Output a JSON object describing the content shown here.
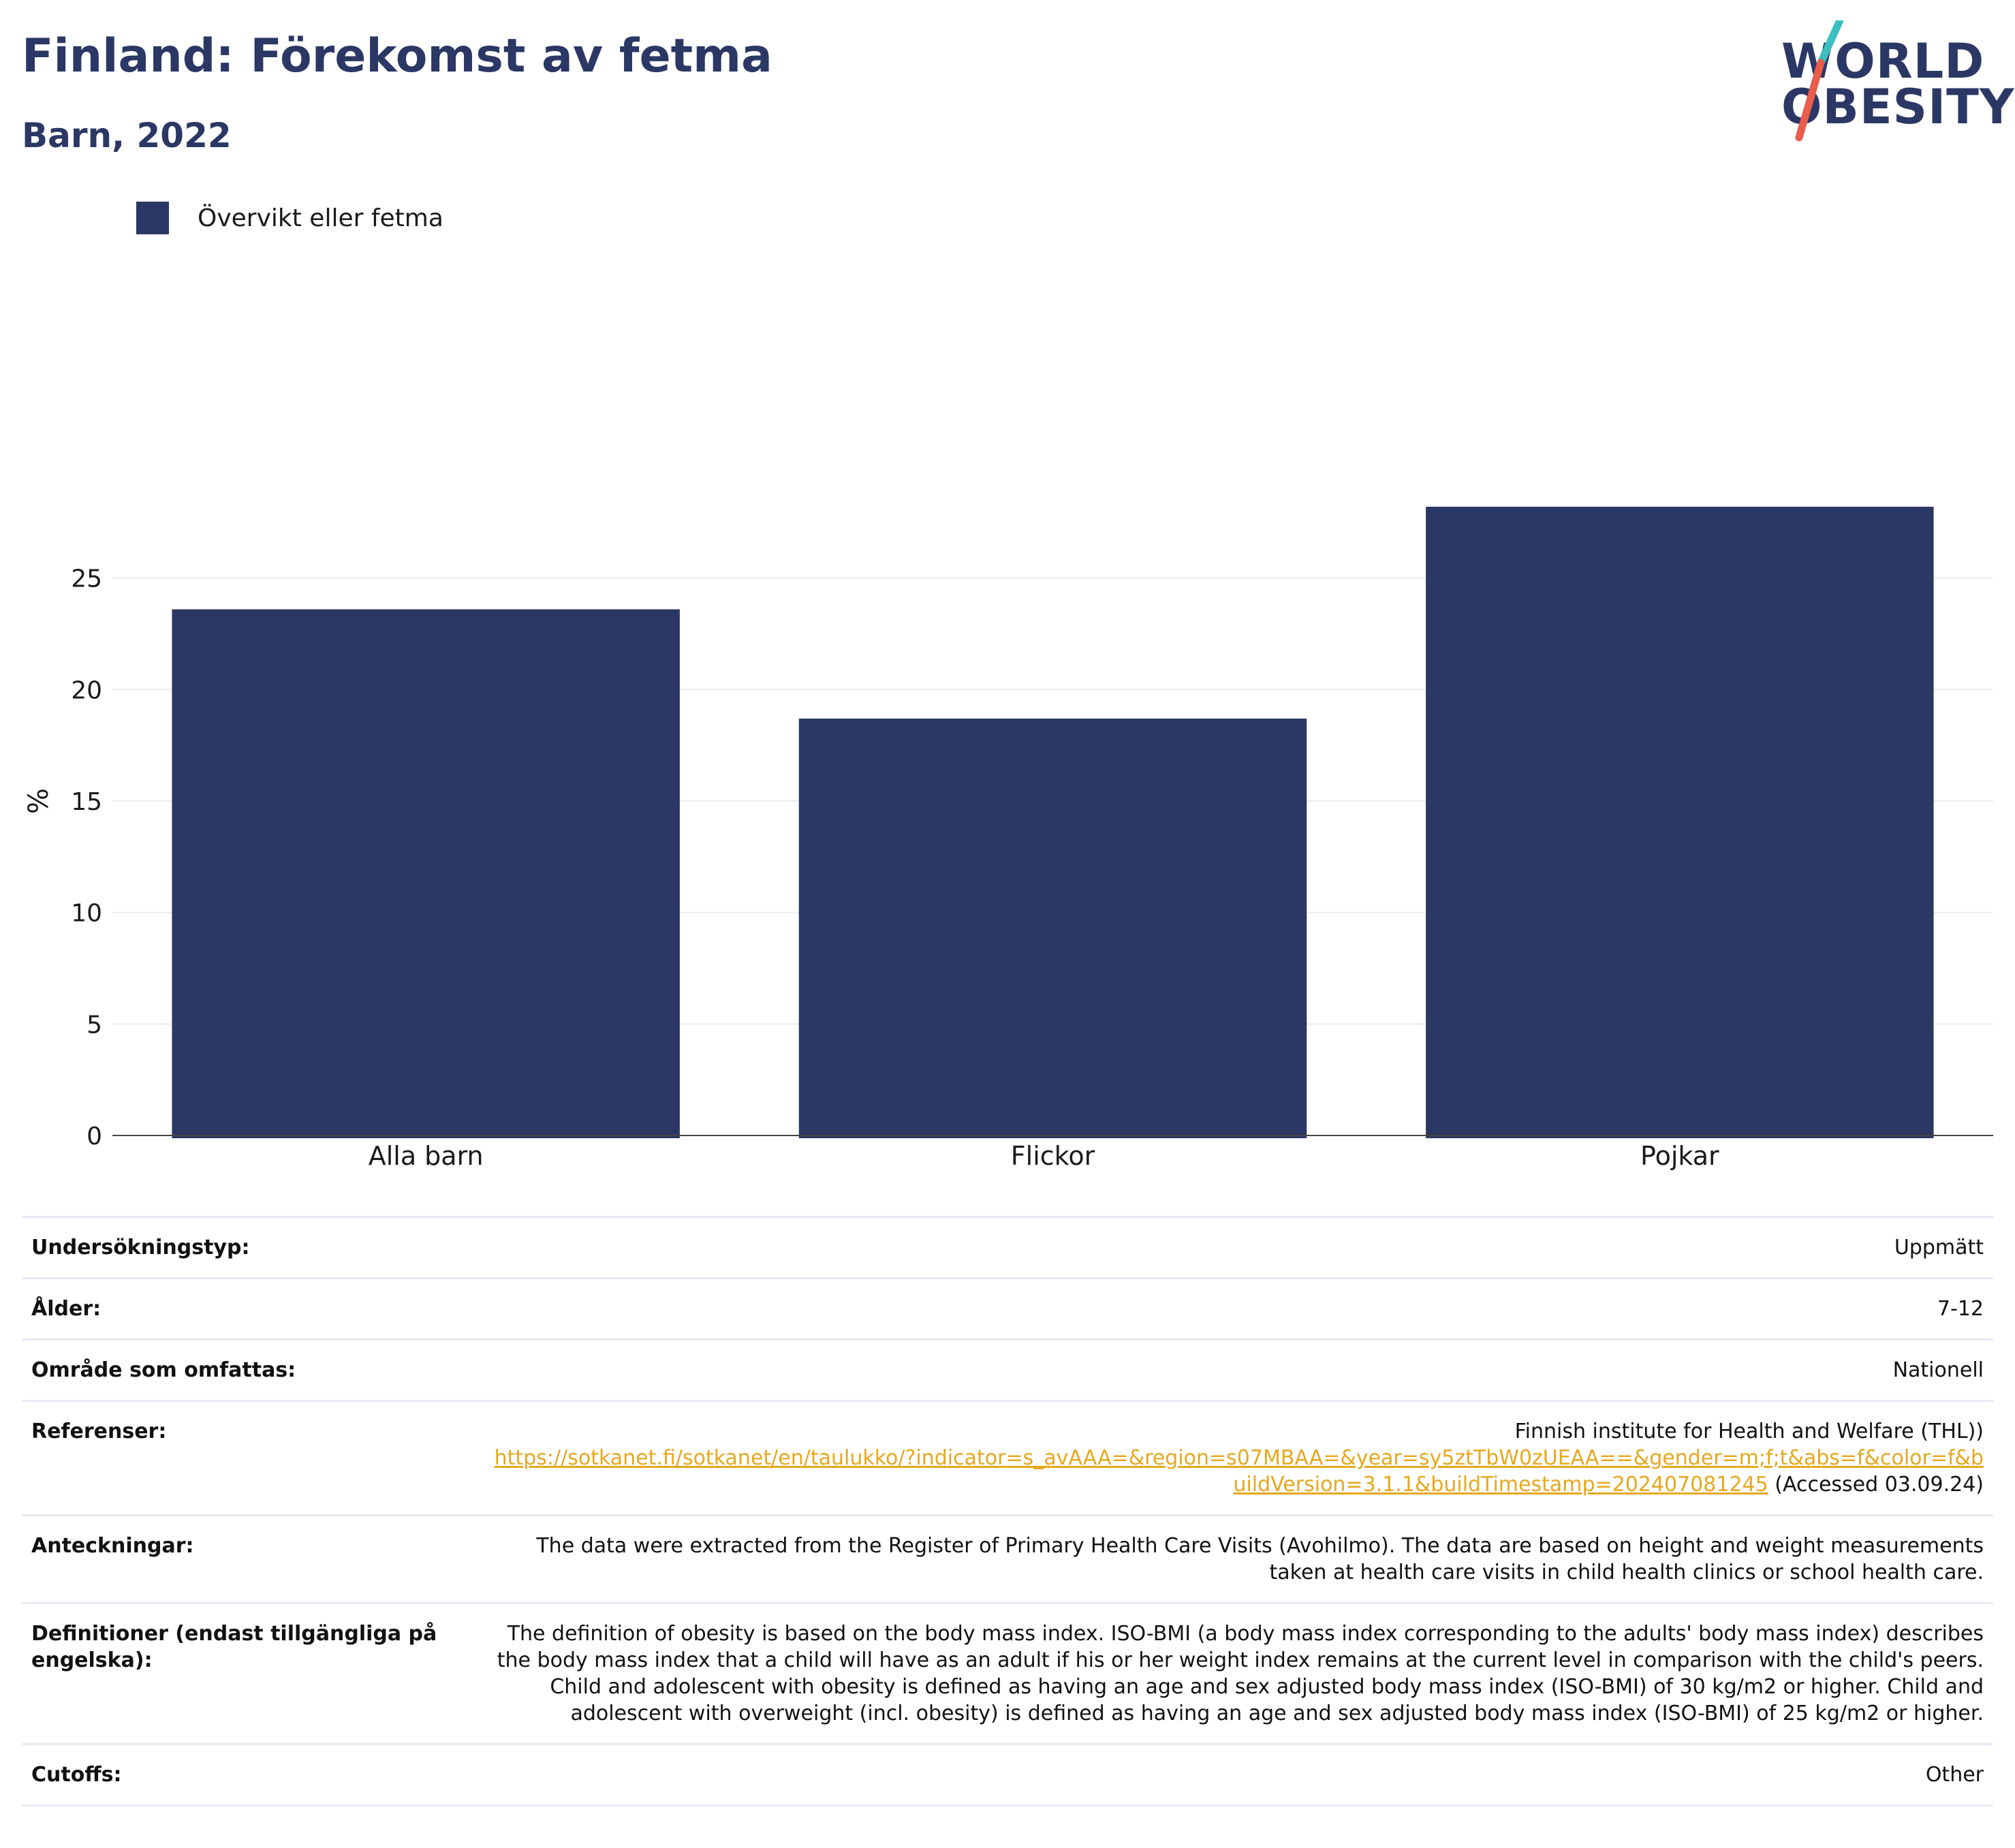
{
  "header": {
    "title": "Finland: Förekomst av fetma",
    "subtitle": "Barn, 2022"
  },
  "logo": {
    "line1": "WORLD",
    "line2": "OBESITY",
    "colors": [
      "#2b3764",
      "#3bbfbf",
      "#e85d4c"
    ]
  },
  "legend": {
    "items": [
      {
        "label": "Övervikt eller fetma",
        "color": "#2b3764"
      }
    ]
  },
  "chart_data": {
    "type": "bar",
    "categories": [
      "Alla barn",
      "Flickor",
      "Pojkar"
    ],
    "series": [
      {
        "name": "Övervikt eller fetma",
        "values": [
          23.6,
          18.7,
          28.2
        ],
        "color": "#2b3764"
      }
    ],
    "ylabel": "%",
    "ylim": [
      0,
      30
    ],
    "yticks": [
      0,
      5,
      10,
      15,
      20,
      25
    ],
    "grid": true,
    "legend_position": "top-left"
  },
  "meta": {
    "survey_type": {
      "label": "Undersökningstyp:",
      "value": "Uppmätt"
    },
    "age": {
      "label": "Ålder:",
      "value": "7-12"
    },
    "area": {
      "label": "Område som omfattas:",
      "value": "Nationell"
    },
    "references": {
      "label": "Referenser:",
      "source": "Finnish institute for Health and Welfare (THL))",
      "url": "https://sotkanet.fi/sotkanet/en/taulukko/?indicator=s_avAAA=&region=s07MBAA=&year=sy5ztTbW0zUEAA==&gender=m;f;t&abs=f&color=f&buildVersion=3.1.1&buildTimestamp=202407081245",
      "accessed": " (Accessed 03.09.24)"
    },
    "notes": {
      "label": "Anteckningar:",
      "value": "The data were extracted from the Register of Primary Health Care Visits (Avohilmo). The data are based on height and weight measurements taken at health care visits in child health clinics or school health care."
    },
    "definitions": {
      "label": "Definitioner (endast tillgängliga på engelska):",
      "value": "The definition of obesity is based on the body mass index. ISO-BMI (a body mass index corresponding to the adults' body mass index) describes the body mass index that a child will have as an adult if his or her weight index remains at the current level in comparison with the child's peers. Child and adolescent with obesity is defined as having an age and sex adjusted body mass index (ISO-BMI) of 30 kg/m2 or higher. Child and adolescent with overweight (incl. obesity) is defined as having an age and sex adjusted body mass index (ISO-BMI) of 25 kg/m2 or higher."
    },
    "cutoffs": {
      "label": "Cutoffs:",
      "value": "Other"
    }
  }
}
